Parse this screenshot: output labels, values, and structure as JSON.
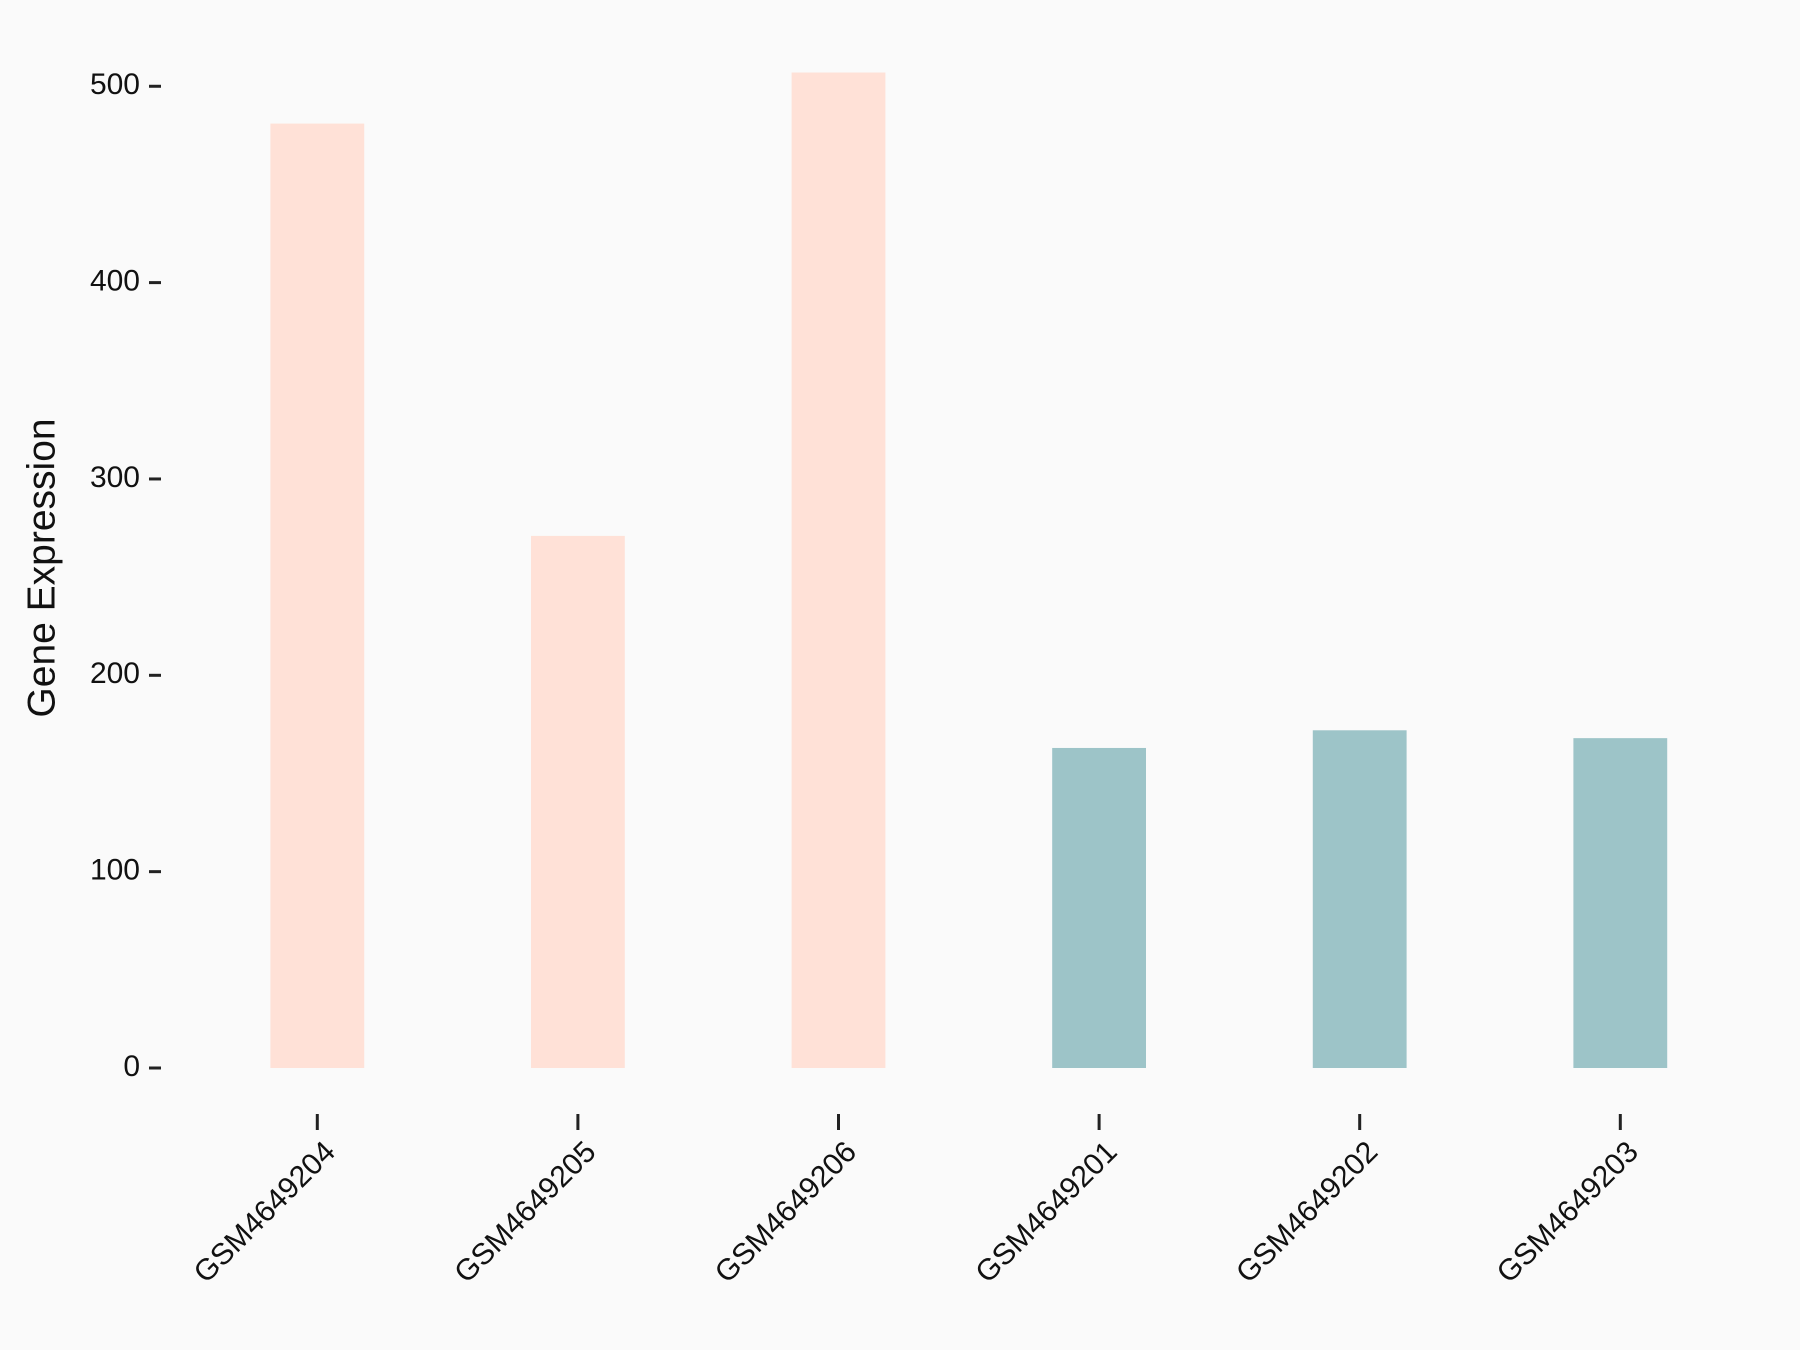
{
  "chart_data": {
    "type": "bar",
    "y_label": "Gene Expression",
    "categories": [
      "GSM4649204",
      "GSM4649205",
      "GSM4649206",
      "GSM4649201",
      "GSM4649202",
      "GSM4649203"
    ],
    "values": [
      481,
      271,
      507,
      163,
      172,
      168
    ],
    "colors": [
      "#ffe1d7",
      "#ffe1d7",
      "#ffe1d7",
      "#9dc4c8",
      "#9dc4c8",
      "#9dc4c8"
    ],
    "ylim": [
      0,
      520
    ],
    "yticks": [
      0,
      100,
      200,
      300,
      400,
      500
    ]
  }
}
